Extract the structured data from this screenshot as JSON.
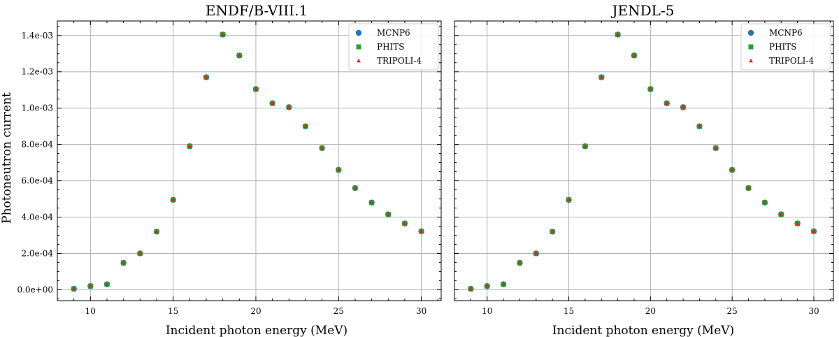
{
  "chart_data": [
    {
      "type": "scatter",
      "title": "ENDF/B-VIII.1",
      "xlabel": "Incident photon energy (MeV)",
      "ylabel": "Photoneutron current",
      "xlim": [
        8,
        31.2
      ],
      "ylim": [
        -6e-05,
        0.00148
      ],
      "xticks": [
        10,
        15,
        20,
        25,
        30
      ],
      "xtick_labels": [
        "10",
        "15",
        "20",
        "25",
        "30"
      ],
      "yticks": [
        0,
        0.0002,
        0.0004,
        0.0006,
        0.0008,
        0.001,
        0.0012,
        0.0014
      ],
      "ytick_labels": [
        "0.0e+00",
        "2.0e-04",
        "4.0e-04",
        "6.0e-04",
        "8.0e-04",
        "1.0e-03",
        "1.2e-03",
        "1.4e-03"
      ],
      "grid": true,
      "legend_position": "top-right",
      "x": [
        9,
        10,
        11,
        12,
        13,
        14,
        15,
        16,
        17,
        18,
        19,
        20,
        21,
        22,
        23,
        24,
        25,
        26,
        27,
        28,
        29,
        30
      ],
      "series": [
        {
          "name": "MCNP6",
          "marker": "circle",
          "color": "#1f77b4",
          "values": [
            5e-06,
            2e-05,
            3e-05,
            0.000148,
            0.0002,
            0.00032,
            0.000495,
            0.00079,
            0.00117,
            0.001405,
            0.00129,
            0.001105,
            0.001027,
            0.001005,
            0.0009,
            0.00078,
            0.00066,
            0.00056,
            0.00048,
            0.000415,
            0.000365,
            0.000322
          ]
        },
        {
          "name": "PHITS",
          "marker": "square",
          "color": "#2ca02c",
          "values": [
            5e-06,
            2e-05,
            3e-05,
            0.000148,
            0.0002,
            0.00032,
            0.000495,
            0.00079,
            0.00117,
            0.001405,
            0.00129,
            0.001105,
            0.001027,
            0.001005,
            0.0009,
            0.00078,
            0.00066,
            0.00056,
            0.00048,
            0.000415,
            0.000365,
            0.000322
          ]
        },
        {
          "name": "TRIPOLI-4",
          "marker": "triangle",
          "color": "#d62728",
          "values": [
            5e-06,
            2e-05,
            3e-05,
            0.000148,
            0.0002,
            0.00032,
            0.000495,
            0.00079,
            0.00117,
            0.001405,
            0.00129,
            0.001105,
            0.001027,
            0.001005,
            0.0009,
            0.00078,
            0.00066,
            0.00056,
            0.00048,
            0.000415,
            0.000365,
            0.000322
          ]
        }
      ]
    },
    {
      "type": "scatter",
      "title": "JENDL-5",
      "xlabel": "Incident photon energy (MeV)",
      "ylabel": "",
      "xlim": [
        8,
        31.2
      ],
      "ylim": [
        -6e-05,
        0.00148
      ],
      "xticks": [
        10,
        15,
        20,
        25,
        30
      ],
      "xtick_labels": [
        "10",
        "15",
        "20",
        "25",
        "30"
      ],
      "yticks": [
        0,
        0.0002,
        0.0004,
        0.0006,
        0.0008,
        0.001,
        0.0012,
        0.0014
      ],
      "ytick_labels": [],
      "grid": true,
      "legend_position": "top-right",
      "x": [
        9,
        10,
        11,
        12,
        13,
        14,
        15,
        16,
        17,
        18,
        19,
        20,
        21,
        22,
        23,
        24,
        25,
        26,
        27,
        28,
        29,
        30
      ],
      "series": [
        {
          "name": "MCNP6",
          "marker": "circle",
          "color": "#1f77b4",
          "values": [
            5e-06,
            2e-05,
            3e-05,
            0.000148,
            0.0002,
            0.00032,
            0.000495,
            0.00079,
            0.00117,
            0.001405,
            0.00129,
            0.001105,
            0.001027,
            0.001005,
            0.0009,
            0.00078,
            0.00066,
            0.00056,
            0.00048,
            0.000415,
            0.000365,
            0.000322
          ]
        },
        {
          "name": "PHITS",
          "marker": "square",
          "color": "#2ca02c",
          "values": [
            5e-06,
            2e-05,
            3e-05,
            0.000148,
            0.0002,
            0.00032,
            0.000495,
            0.00079,
            0.00117,
            0.001405,
            0.00129,
            0.001105,
            0.001027,
            0.001005,
            0.0009,
            0.00078,
            0.00066,
            0.00056,
            0.00048,
            0.000415,
            0.000365,
            0.000322
          ]
        },
        {
          "name": "TRIPOLI-4",
          "marker": "triangle",
          "color": "#d62728",
          "values": [
            5e-06,
            2e-05,
            3e-05,
            0.000148,
            0.0002,
            0.00032,
            0.000495,
            0.00079,
            0.00117,
            0.001405,
            0.00129,
            0.001105,
            0.001027,
            0.001005,
            0.0009,
            0.00078,
            0.00066,
            0.00056,
            0.00048,
            0.000415,
            0.000365,
            0.000322
          ]
        }
      ]
    }
  ]
}
